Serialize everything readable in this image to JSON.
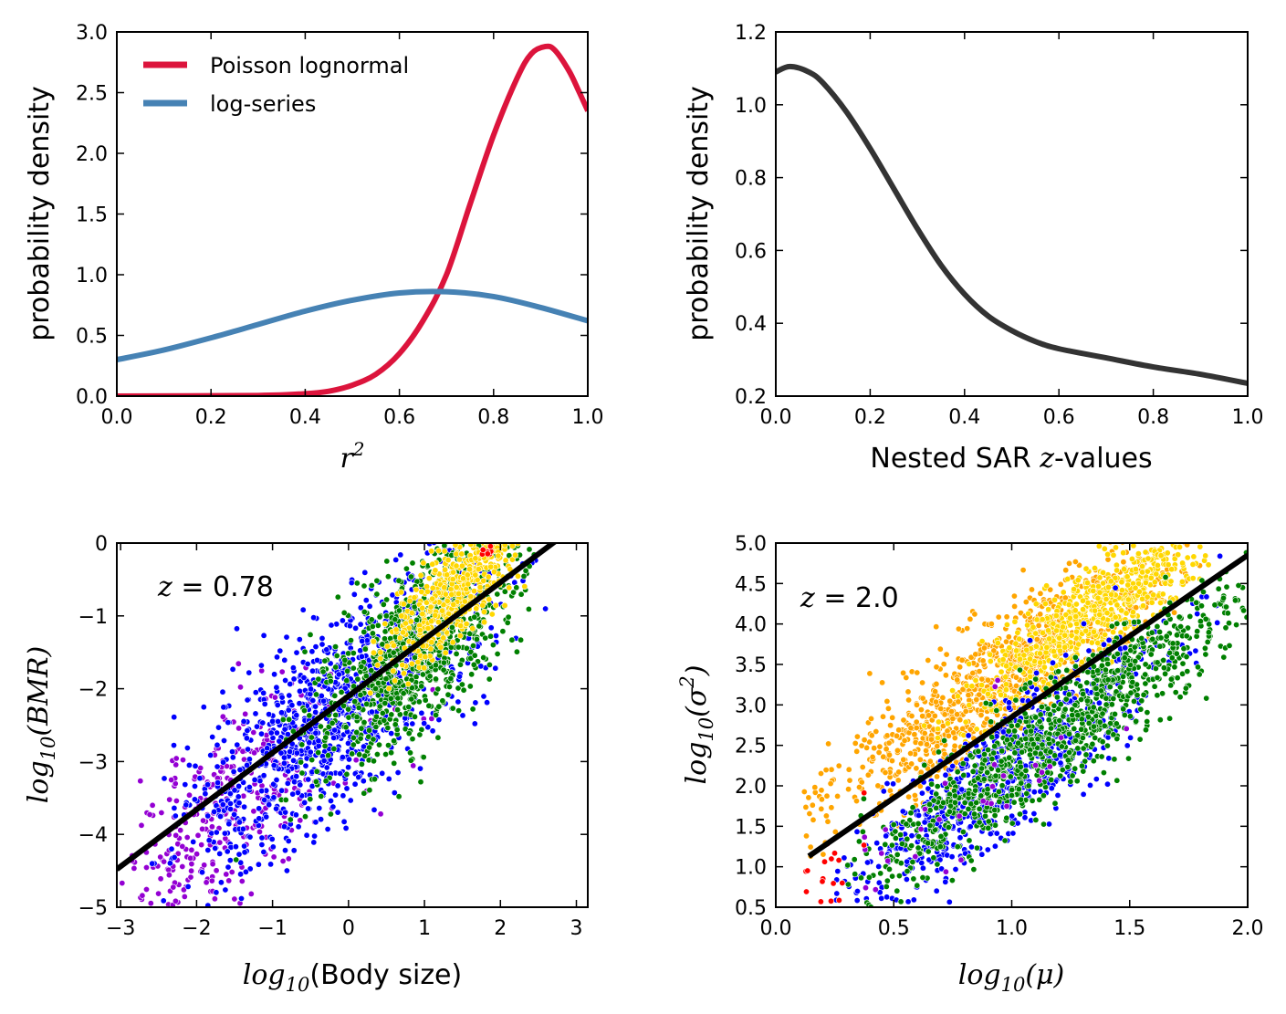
{
  "colors": {
    "poisson": "#dc143c",
    "logseries": "#4682b4",
    "density": "#333333",
    "fit": "#000000",
    "purple": "#9400d3",
    "blue": "#0000ff",
    "green": "#008000",
    "gold": "#ffd700",
    "orange": "#ffa500",
    "red": "#ff0000"
  },
  "chart_data": [
    {
      "type": "line",
      "xlabel": "r^2",
      "ylabel": "probability density",
      "xlim": [
        0.0,
        1.0
      ],
      "ylim": [
        0.0,
        3.0
      ],
      "xticks": [
        "0.0",
        "0.2",
        "0.4",
        "0.6",
        "0.8",
        "1.0"
      ],
      "yticks": [
        "0.0",
        "0.5",
        "1.0",
        "1.5",
        "2.0",
        "2.5",
        "3.0"
      ],
      "legend_position": "top-left",
      "series": [
        {
          "name": "Poisson lognormal",
          "x": [
            0.0,
            0.3,
            0.4,
            0.45,
            0.5,
            0.55,
            0.6,
            0.65,
            0.7,
            0.75,
            0.8,
            0.85,
            0.88,
            0.91,
            0.93,
            0.96,
            0.98,
            1.0
          ],
          "y": [
            0.0,
            0.005,
            0.02,
            0.04,
            0.09,
            0.18,
            0.35,
            0.62,
            1.0,
            1.58,
            2.15,
            2.62,
            2.82,
            2.88,
            2.85,
            2.68,
            2.52,
            2.35
          ]
        },
        {
          "name": "log-series",
          "x": [
            0.0,
            0.1,
            0.2,
            0.3,
            0.4,
            0.5,
            0.6,
            0.7,
            0.8,
            0.9,
            1.0
          ],
          "y": [
            0.3,
            0.38,
            0.48,
            0.59,
            0.7,
            0.79,
            0.85,
            0.86,
            0.82,
            0.73,
            0.62
          ]
        }
      ]
    },
    {
      "type": "line",
      "xlabel": "Nested SAR z-values",
      "ylabel": "probability density",
      "xlim": [
        0.0,
        1.0
      ],
      "ylim": [
        0.2,
        1.2
      ],
      "xticks": [
        "0.0",
        "0.2",
        "0.4",
        "0.6",
        "0.8",
        "1.0"
      ],
      "yticks": [
        "0.2",
        "0.4",
        "0.6",
        "0.8",
        "1.0",
        "1.2"
      ],
      "series": [
        {
          "x": [
            0.0,
            0.03,
            0.07,
            0.1,
            0.15,
            0.2,
            0.25,
            0.3,
            0.35,
            0.4,
            0.45,
            0.5,
            0.55,
            0.6,
            0.7,
            0.8,
            0.9,
            1.0
          ],
          "y": [
            1.09,
            1.105,
            1.09,
            1.06,
            0.98,
            0.88,
            0.77,
            0.66,
            0.56,
            0.48,
            0.42,
            0.38,
            0.35,
            0.33,
            0.305,
            0.28,
            0.26,
            0.235
          ]
        }
      ]
    },
    {
      "type": "scatter",
      "xlabel": "log10(Body size)",
      "ylabel": "log10(BMR)",
      "xlim": [
        -3.05,
        3.15
      ],
      "ylim": [
        -5.0,
        0.0
      ],
      "xticks": [
        "−3",
        "−2",
        "−1",
        "0",
        "1",
        "2",
        "3"
      ],
      "yticks": [
        "−5",
        "−4",
        "−3",
        "−2",
        "−1",
        "0"
      ],
      "annotation": "z = 0.78",
      "fit_line": {
        "slope": 0.78,
        "intercept": -2.1
      },
      "groups": [
        {
          "color": "purple",
          "x_center": -1.6,
          "x_spread": 0.9,
          "x_range": [
            -3.0,
            1.5
          ],
          "y_slope": 0.75,
          "y_intercept": -2.5,
          "noise": 0.6,
          "count": 360
        },
        {
          "color": "blue",
          "x_center": -0.2,
          "x_spread": 1.0,
          "x_range": [
            -2.6,
            2.6
          ],
          "y_slope": 0.78,
          "y_intercept": -2.2,
          "noise": 0.65,
          "count": 1100
        },
        {
          "color": "green",
          "x_center": 0.9,
          "x_spread": 0.7,
          "x_range": [
            -1.5,
            2.5
          ],
          "y_slope": 0.82,
          "y_intercept": -2.2,
          "noise": 0.55,
          "count": 900
        },
        {
          "color": "gold",
          "x_center": 1.4,
          "x_spread": 0.45,
          "x_range": [
            0.1,
            2.8
          ],
          "y_slope": 0.9,
          "y_intercept": -1.9,
          "noise": 0.35,
          "count": 460
        },
        {
          "color": "red",
          "x_center": 1.9,
          "x_spread": 0.12,
          "x_range": [
            1.6,
            2.1
          ],
          "y_slope": 0.5,
          "y_intercept": -1.05,
          "noise": 0.08,
          "count": 8
        }
      ]
    },
    {
      "type": "scatter",
      "xlabel": "log10(μ)",
      "ylabel": "log10(σ²)",
      "xlim": [
        0.0,
        2.0
      ],
      "ylim": [
        0.5,
        5.0
      ],
      "xticks": [
        "0.0",
        "0.5",
        "1.0",
        "1.5",
        "2.0"
      ],
      "yticks": [
        "0.5",
        "1.0",
        "1.5",
        "2.0",
        "2.5",
        "3.0",
        "3.5",
        "4.0",
        "4.5",
        "5.0"
      ],
      "annotation": "z = 2.0",
      "fit_line": {
        "slope": 2.0,
        "intercept": 0.85
      },
      "groups": [
        {
          "color": "orange",
          "x_center": 0.95,
          "x_spread": 0.35,
          "x_range": [
            0.12,
            1.8
          ],
          "y_slope": 2.0,
          "y_intercept": 1.4,
          "noise": 0.4,
          "count": 1000
        },
        {
          "color": "gold",
          "x_center": 1.35,
          "x_spread": 0.25,
          "x_range": [
            0.5,
            1.85
          ],
          "y_slope": 2.0,
          "y_intercept": 1.45,
          "noise": 0.3,
          "count": 650
        },
        {
          "color": "blue",
          "x_center": 0.95,
          "x_spread": 0.35,
          "x_range": [
            0.25,
            1.9
          ],
          "y_slope": 2.1,
          "y_intercept": 0.1,
          "noise": 0.4,
          "count": 750
        },
        {
          "color": "green",
          "x_center": 1.2,
          "x_spread": 0.4,
          "x_range": [
            0.3,
            2.0
          ],
          "y_slope": 2.15,
          "y_intercept": 0.05,
          "noise": 0.35,
          "count": 1000
        },
        {
          "color": "purple",
          "x_center": 0.8,
          "x_spread": 0.3,
          "x_range": [
            0.3,
            1.6
          ],
          "y_slope": 2.0,
          "y_intercept": 0.3,
          "noise": 0.4,
          "count": 30
        },
        {
          "color": "red",
          "x_center": 0.22,
          "x_spread": 0.08,
          "x_range": [
            0.12,
            0.45
          ],
          "y_slope": 2.0,
          "y_intercept": 0.45,
          "noise": 0.3,
          "count": 18
        }
      ]
    }
  ]
}
